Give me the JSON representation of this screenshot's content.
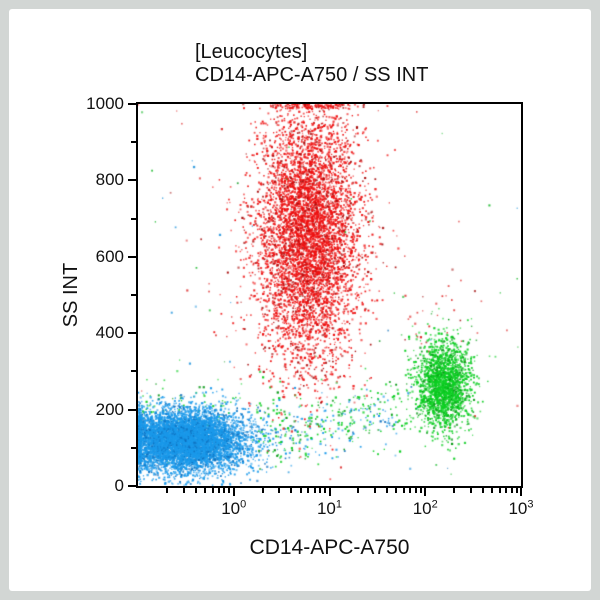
{
  "page": {
    "border_color": "#d2d6d4",
    "background": "#ffffff",
    "frame_color": "#000000"
  },
  "chart_data": {
    "type": "scatter",
    "title": "[Leucocytes]",
    "subtitle": "CD14-APC-A750 / SS INT",
    "xlabel": "CD14-APC-A750",
    "ylabel": "SS INT",
    "x_scale": "log",
    "x_decade_range": [
      -1,
      3
    ],
    "x_ticks": [
      {
        "base": "10",
        "exp": "0",
        "decade": 0
      },
      {
        "base": "10",
        "exp": "1",
        "decade": 1
      },
      {
        "base": "10",
        "exp": "2",
        "decade": 2
      },
      {
        "base": "10",
        "exp": "3",
        "decade": 3
      }
    ],
    "y_range": [
      0,
      1000
    ],
    "y_major_ticks": [
      0,
      200,
      400,
      600,
      800,
      1000
    ],
    "y_minor_ticks": [
      100,
      300,
      500,
      700,
      900
    ],
    "grid": false,
    "legend": false,
    "populations": [
      {
        "name": "granulocytes",
        "shape": "gauss",
        "color": "#ee1111",
        "color_dark": "#a80c0c",
        "count": 5800,
        "x_log_mean": 0.78,
        "x_log_sd": 0.27,
        "y_mean": 660,
        "y_sd": 170,
        "seed": 22
      },
      {
        "name": "monocytes",
        "shape": "gauss",
        "color": "#0cce22",
        "color_dark": "#089916",
        "count": 2000,
        "x_log_mean": 2.2,
        "x_log_sd": 0.14,
        "y_mean": 265,
        "y_sd": 58,
        "seed": 33
      },
      {
        "name": "lymphocytes",
        "shape": "gauss",
        "color": "#1a99ea",
        "color_dark": "#0e6fbe",
        "count": 7200,
        "x_log_mean": -0.52,
        "x_log_sd": 0.33,
        "y_mean": 118,
        "y_sd": 40,
        "seed": 11
      },
      {
        "name": "monocyte-trail-green",
        "shape": "band",
        "color": "#0cce22",
        "color_dark": "#089916",
        "count": 260,
        "x_log_min": 0.25,
        "x_log_max": 2.1,
        "y_start": 115,
        "y_end": 235,
        "y_sd": 45,
        "seed": 44
      },
      {
        "name": "trail-blue",
        "shape": "band",
        "color": "#1a99ea",
        "color_dark": "#0e6fbe",
        "count": 170,
        "x_log_min": 0.0,
        "x_log_max": 1.7,
        "y_start": 105,
        "y_end": 185,
        "y_sd": 38,
        "seed": 55
      },
      {
        "name": "left-band-green",
        "shape": "band",
        "color": "#0cce22",
        "color_dark": "#089916",
        "count": 90,
        "x_log_min": -1.0,
        "x_log_max": 0.5,
        "y_start": 205,
        "y_end": 215,
        "y_sd": 40,
        "seed": 66
      },
      {
        "name": "red-specks-above-monocytes",
        "shape": "gauss",
        "color": "#e03030",
        "color_dark": "#a82020",
        "count": 28,
        "x_log_mean": 2.1,
        "x_log_sd": 0.22,
        "y_mean": 430,
        "y_sd": 60,
        "seed": 77
      },
      {
        "name": "debris-red",
        "shape": "uniform",
        "color": "#e04040",
        "color_dark": "#b03030",
        "count": 45,
        "x_log_min": -1,
        "x_log_max": 3,
        "y_min": 20,
        "y_max": 1000,
        "seed": 88
      },
      {
        "name": "debris-green",
        "shape": "uniform",
        "color": "#30c040",
        "color_dark": "#20a030",
        "count": 35,
        "x_log_min": -1,
        "x_log_max": 3,
        "y_min": 20,
        "y_max": 980,
        "seed": 99
      },
      {
        "name": "debris-blue",
        "shape": "uniform",
        "color": "#3aa0e0",
        "color_dark": "#2a80c0",
        "count": 30,
        "x_log_min": -1,
        "x_log_max": 3,
        "y_min": 20,
        "y_max": 900,
        "seed": 111
      }
    ]
  }
}
